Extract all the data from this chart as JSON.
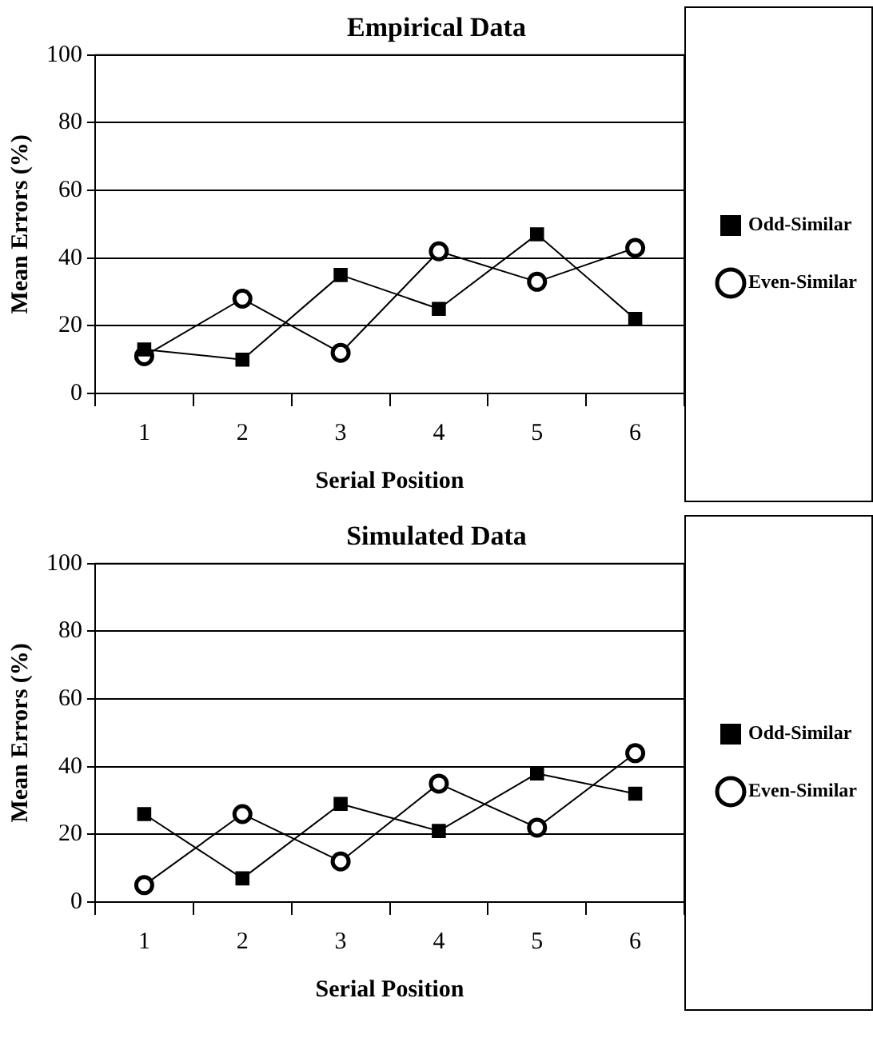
{
  "chart_data": [
    {
      "type": "line",
      "title": "Empirical Data",
      "xlabel": "Serial Position",
      "ylabel": "Mean Errors (%)",
      "categories": [
        "1",
        "2",
        "3",
        "4",
        "5",
        "6"
      ],
      "ylim": [
        0,
        100
      ],
      "yticks": [
        0,
        20,
        40,
        60,
        80,
        100
      ],
      "grid": "y",
      "legend": "right",
      "series": [
        {
          "name": "Odd-Similar",
          "color": "#000000",
          "marker": "square",
          "values": [
            13,
            10,
            35,
            25,
            47,
            22
          ]
        },
        {
          "name": "Even-Similar",
          "color": "#000000",
          "marker": "circle",
          "values": [
            11,
            28,
            12,
            42,
            33,
            43
          ]
        }
      ]
    },
    {
      "type": "line",
      "title": "Simulated Data",
      "xlabel": "Serial Position",
      "ylabel": "Mean Errors (%)",
      "categories": [
        "1",
        "2",
        "3",
        "4",
        "5",
        "6"
      ],
      "ylim": [
        0,
        100
      ],
      "yticks": [
        0,
        20,
        40,
        60,
        80,
        100
      ],
      "grid": "y",
      "legend": "right",
      "series": [
        {
          "name": "Odd-Similar",
          "color": "#000000",
          "marker": "square",
          "values": [
            26,
            7,
            29,
            21,
            38,
            32
          ]
        },
        {
          "name": "Even-Similar",
          "color": "#000000",
          "marker": "circle",
          "values": [
            5,
            26,
            12,
            35,
            22,
            44
          ]
        }
      ]
    }
  ]
}
